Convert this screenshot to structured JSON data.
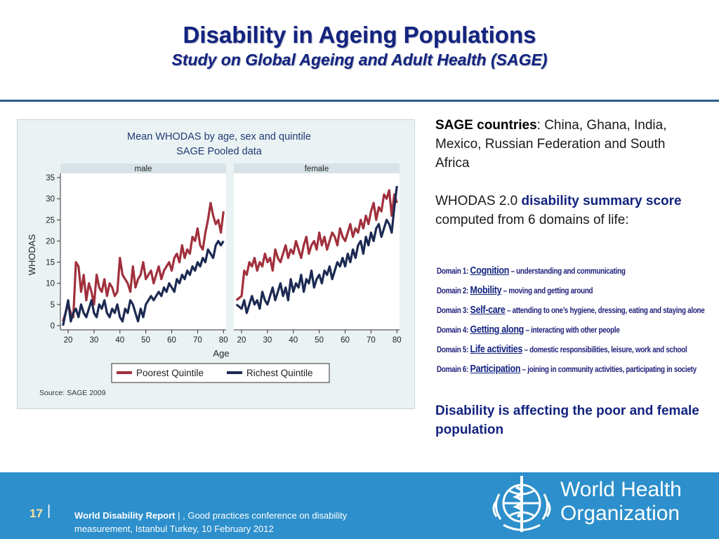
{
  "header": {
    "title": "Disability in Ageing Populations",
    "subtitle": "Study on Global Ageing and Adult Health (SAGE)"
  },
  "chart_data": {
    "type": "line",
    "title": "Mean WHODAS by age, sex and quintile",
    "subtitle": "SAGE Pooled data",
    "panels": [
      {
        "name": "male",
        "x": [
          18,
          20,
          21,
          22,
          23,
          24,
          25,
          26,
          27,
          28,
          29,
          30,
          31,
          32,
          33,
          34,
          35,
          36,
          37,
          38,
          39,
          40,
          41,
          42,
          43,
          44,
          45,
          46,
          47,
          48,
          49,
          50,
          51,
          52,
          53,
          54,
          55,
          56,
          57,
          58,
          59,
          60,
          61,
          62,
          63,
          64,
          65,
          66,
          67,
          68,
          69,
          70,
          71,
          72,
          73,
          74,
          75,
          76,
          77,
          78,
          79,
          80
        ],
        "series": [
          {
            "name": "Poorest Quintile",
            "color": "#a0303c",
            "values": [
              1,
              5,
              3,
              2,
              15,
              14,
              8,
              12,
              6,
              10,
              8,
              5,
              12,
              9,
              8,
              11,
              7,
              10,
              9,
              7,
              8,
              16,
              12,
              11,
              10,
              8,
              14,
              9,
              11,
              12,
              15,
              11,
              12,
              13,
              10,
              12,
              14,
              11,
              13,
              14,
              15,
              13,
              16,
              17,
              15,
              19,
              16,
              18,
              17,
              21,
              20,
              23,
              19,
              18,
              22,
              25,
              29,
              26,
              24,
              25,
              22,
              27
            ]
          },
          {
            "name": "Richest Quintile",
            "color": "#1c2a52",
            "values": [
              0,
              6,
              1,
              3,
              4,
              2,
              5,
              3,
              2,
              4,
              6,
              3,
              2,
              5,
              4,
              6,
              3,
              2,
              4,
              3,
              5,
              2,
              1,
              4,
              3,
              6,
              5,
              3,
              1,
              4,
              2,
              5,
              6,
              7,
              6,
              7,
              8,
              7,
              9,
              8,
              10,
              9,
              8,
              11,
              10,
              12,
              11,
              13,
              12,
              14,
              13,
              15,
              14,
              16,
              15,
              18,
              17,
              16,
              19,
              20,
              19,
              20
            ]
          }
        ]
      },
      {
        "name": "female",
        "x": [
          18,
          20,
          21,
          22,
          23,
          24,
          25,
          26,
          27,
          28,
          29,
          30,
          31,
          32,
          33,
          34,
          35,
          36,
          37,
          38,
          39,
          40,
          41,
          42,
          43,
          44,
          45,
          46,
          47,
          48,
          49,
          50,
          51,
          52,
          53,
          54,
          55,
          56,
          57,
          58,
          59,
          60,
          61,
          62,
          63,
          64,
          65,
          66,
          67,
          68,
          69,
          70,
          71,
          72,
          73,
          74,
          75,
          76,
          77,
          78,
          79,
          80
        ],
        "series": [
          {
            "name": "Poorest Quintile",
            "color": "#a0303c",
            "values": [
              6,
              7,
              13,
              12,
              15,
              14,
              16,
              13,
              15,
              14,
              17,
              15,
              16,
              13,
              18,
              16,
              15,
              17,
              19,
              16,
              18,
              17,
              20,
              18,
              16,
              19,
              21,
              17,
              19,
              20,
              18,
              22,
              19,
              21,
              18,
              20,
              22,
              21,
              19,
              23,
              21,
              20,
              22,
              24,
              21,
              23,
              22,
              25,
              23,
              26,
              24,
              27,
              29,
              25,
              28,
              27,
              31,
              30,
              32,
              26,
              31,
              29
            ]
          },
          {
            "name": "Richest Quintile",
            "color": "#1c2a52",
            "values": [
              5,
              4,
              6,
              3,
              5,
              7,
              5,
              6,
              4,
              8,
              6,
              5,
              7,
              9,
              6,
              8,
              10,
              7,
              9,
              6,
              11,
              8,
              10,
              9,
              12,
              8,
              11,
              10,
              13,
              9,
              11,
              12,
              10,
              13,
              12,
              14,
              11,
              13,
              15,
              14,
              16,
              14,
              17,
              15,
              18,
              16,
              19,
              20,
              17,
              21,
              19,
              22,
              20,
              23,
              24,
              21,
              23,
              25,
              24,
              22,
              28,
              33
            ]
          }
        ]
      }
    ],
    "xlabel": "Age",
    "ylabel": "WHODAS",
    "xticks": [
      20,
      30,
      40,
      50,
      60,
      70,
      80
    ],
    "yticks": [
      0,
      5,
      10,
      15,
      20,
      25,
      30,
      35
    ],
    "xlim": [
      17,
      81
    ],
    "ylim": [
      -1,
      36
    ],
    "legend": [
      "Poorest Quintile",
      "Richest Quintile"
    ],
    "legend_position": "bottom",
    "source": "Source: SAGE 2009",
    "grid": false
  },
  "info": {
    "countries_label": "SAGE countries",
    "countries_text": ": China, Ghana, India, Mexico, Russian Federation and South Africa",
    "whodas_pre": "WHODAS 2.0 ",
    "whodas_bold": "disability summary score",
    "whodas_post": " computed from 6 domains of life:"
  },
  "domains": [
    {
      "prefix": "Domain 1: ",
      "name": "Cognition",
      "desc": " – understanding and communicating"
    },
    {
      "prefix": "Domain 2: ",
      "name": "Mobility",
      "desc": " – moving and getting around"
    },
    {
      "prefix": "Domain 3: ",
      "name": "Self-care",
      "desc": " – attending to one’s hygiene, dressing, eating and staying alone"
    },
    {
      "prefix": "Domain 4: ",
      "name": "Getting along",
      "desc": " – interacting with other people"
    },
    {
      "prefix": "Domain 5: ",
      "name": "Life activities",
      "desc": " – domestic responsibilities, leisure, work and school"
    },
    {
      "prefix": "Domain 6: ",
      "name": "Participation",
      "desc": " – joining in community activities,  participating in society"
    }
  ],
  "conclusion": "Disability is affecting the poor and female population",
  "footer": {
    "page_number": "17",
    "separator": "|",
    "report_bold": "World  Disability Report",
    "report_sep": "  |  ",
    "report_text": ", Good practices conference on disability measurement, Istanbul Turkey, 10 February 2012",
    "org_line1": "World Health",
    "org_line2": "Organization",
    "colors": {
      "band": "#2d8fcb",
      "title": "#13237f"
    }
  }
}
